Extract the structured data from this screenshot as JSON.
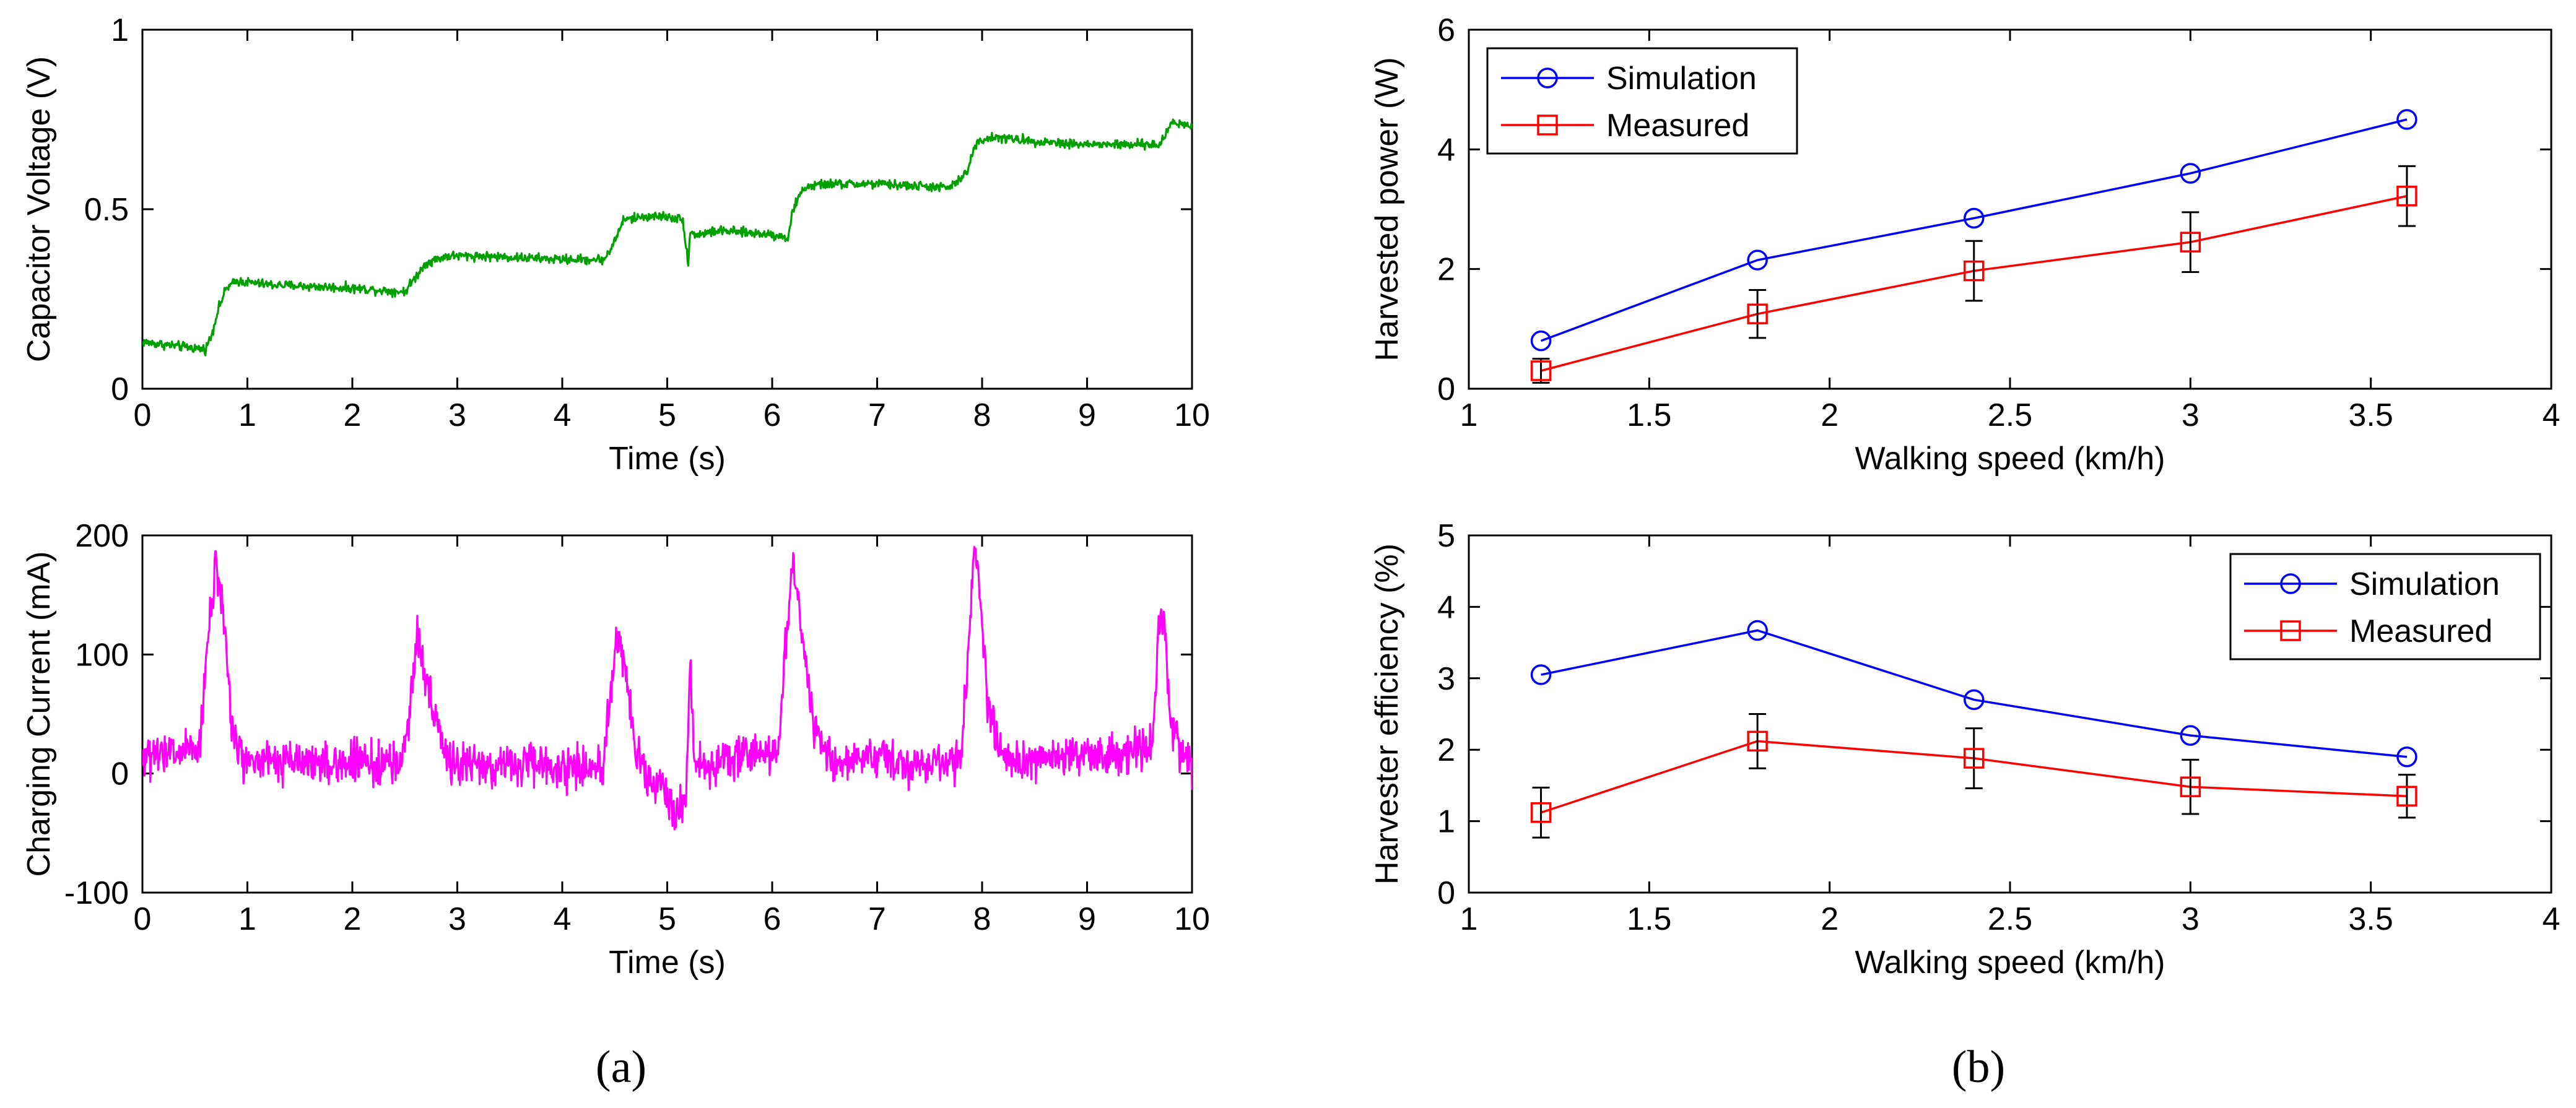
{
  "panel_labels": [
    "(a)",
    "(b)"
  ],
  "colors": {
    "voltage": "#00a000",
    "current": "#ff00ff",
    "simulation": "#0000ff",
    "measured": "#ff0000",
    "errorbar": "#000000"
  },
  "chart_data": [
    {
      "id": "a1",
      "type": "line",
      "title": "",
      "xlabel": "Time (s)",
      "ylabel": "Capacitor Voltage (V)",
      "xlim": [
        0,
        10
      ],
      "ylim": [
        0,
        1
      ],
      "xticks": [
        0,
        1,
        2,
        3,
        4,
        5,
        6,
        7,
        8,
        9,
        10
      ],
      "yticks": [
        0,
        0.5,
        1
      ],
      "series": [
        {
          "name": "Capacitor Voltage",
          "noise": 0.008,
          "x": [
            0,
            0.6,
            0.66,
            0.72,
            0.8,
            0.9,
            1.2,
            2.0,
            2.5,
            2.6,
            2.7,
            2.9,
            3.2,
            4.0,
            4.4,
            4.5,
            4.58,
            4.8,
            5.0,
            5.15,
            5.2,
            5.22,
            5.25,
            5.3,
            5.5,
            6.0,
            6.15,
            6.2,
            6.3,
            6.5,
            7.0,
            7.7,
            7.85,
            7.95,
            8.1,
            8.5,
            9.0,
            9.7,
            9.8,
            9.9,
            10
          ],
          "y": [
            0.13,
            0.11,
            0.15,
            0.22,
            0.28,
            0.3,
            0.29,
            0.28,
            0.27,
            0.31,
            0.35,
            0.37,
            0.37,
            0.36,
            0.36,
            0.41,
            0.47,
            0.48,
            0.48,
            0.47,
            0.35,
            0.44,
            0.43,
            0.43,
            0.44,
            0.43,
            0.42,
            0.5,
            0.56,
            0.57,
            0.57,
            0.56,
            0.6,
            0.69,
            0.7,
            0.69,
            0.68,
            0.68,
            0.74,
            0.74,
            0.73
          ]
        }
      ]
    },
    {
      "id": "a2",
      "type": "line",
      "title": "",
      "xlabel": "Time (s)",
      "ylabel": "Charging Current (mA)",
      "xlim": [
        0,
        10
      ],
      "ylim": [
        -100,
        200
      ],
      "xticks": [
        0,
        1,
        2,
        3,
        4,
        5,
        6,
        7,
        8,
        9,
        10
      ],
      "yticks": [
        -100,
        0,
        100,
        200
      ],
      "series": [
        {
          "name": "Charging Current",
          "noise": 11,
          "x": [
            0,
            0.55,
            0.62,
            0.7,
            0.78,
            0.85,
            0.95,
            1.0,
            2.45,
            2.55,
            2.62,
            2.7,
            2.85,
            3.0,
            4.38,
            4.45,
            4.52,
            4.6,
            4.7,
            4.8,
            5.0,
            5.1,
            5.18,
            5.22,
            5.26,
            5.4,
            6.05,
            6.13,
            6.2,
            6.28,
            6.4,
            6.55,
            7.8,
            7.88,
            7.93,
            7.98,
            8.05,
            8.15,
            8.3,
            9.62,
            9.68,
            9.73,
            9.8,
            9.9,
            10
          ],
          "y": [
            12,
            20,
            110,
            175,
            130,
            40,
            12,
            10,
            8,
            50,
            125,
            80,
            20,
            8,
            5,
            60,
            115,
            90,
            20,
            -5,
            -20,
            -30,
            -15,
            100,
            5,
            8,
            20,
            110,
            175,
            120,
            40,
            10,
            10,
            130,
            195,
            150,
            60,
            25,
            10,
            20,
            120,
            130,
            40,
            15,
            10
          ]
        }
      ]
    },
    {
      "id": "b1",
      "type": "line",
      "title": "",
      "xlabel": "Walking speed (km/h)",
      "ylabel": "Harvested power (W)",
      "xlim": [
        1,
        4
      ],
      "ylim": [
        0,
        6
      ],
      "xticks": [
        "1",
        "1.5",
        "2",
        "2.5",
        "3",
        "3.5",
        "4"
      ],
      "yticks": [
        "0",
        "2",
        "4",
        "6"
      ],
      "legend": {
        "position": "top-left",
        "entries": [
          "Simulation",
          "Measured"
        ]
      },
      "series": [
        {
          "name": "Simulation",
          "marker": "circle",
          "x": [
            1.2,
            1.8,
            2.4,
            3.0,
            3.6
          ],
          "y": [
            0.8,
            2.15,
            2.85,
            3.6,
            4.5
          ]
        },
        {
          "name": "Measured",
          "marker": "square",
          "x": [
            1.2,
            1.8,
            2.4,
            3.0,
            3.6
          ],
          "y": [
            0.3,
            1.25,
            1.97,
            2.45,
            3.22
          ],
          "yerr": [
            0.2,
            0.4,
            0.5,
            0.5,
            0.5
          ]
        }
      ]
    },
    {
      "id": "b2",
      "type": "line",
      "title": "",
      "xlabel": "Walking speed (km/h)",
      "ylabel": "Harvester efficiency (%)",
      "xlim": [
        1,
        4
      ],
      "ylim": [
        0,
        5
      ],
      "xticks": [
        "1",
        "1.5",
        "2",
        "2.5",
        "3",
        "3.5",
        "4"
      ],
      "yticks": [
        "0",
        "1",
        "2",
        "3",
        "4",
        "5"
      ],
      "legend": {
        "position": "top-right",
        "entries": [
          "Simulation",
          "Measured"
        ]
      },
      "series": [
        {
          "name": "Simulation",
          "marker": "circle",
          "x": [
            1.2,
            1.8,
            2.4,
            3.0,
            3.6
          ],
          "y": [
            3.05,
            3.67,
            2.7,
            2.2,
            1.9
          ]
        },
        {
          "name": "Measured",
          "marker": "square",
          "x": [
            1.2,
            1.8,
            2.4,
            3.0,
            3.6
          ],
          "y": [
            1.12,
            2.12,
            1.88,
            1.48,
            1.35
          ],
          "yerr": [
            0.35,
            0.38,
            0.42,
            0.38,
            0.3
          ]
        }
      ]
    }
  ]
}
